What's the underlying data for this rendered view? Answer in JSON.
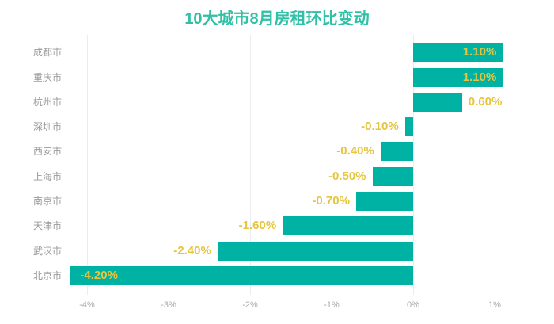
{
  "title": "10大城市8月房租环比变动",
  "chart_data": {
    "type": "bar",
    "orientation": "horizontal",
    "title": "10大城市8月房租环比变动",
    "categories": [
      "成都市",
      "重庆市",
      "杭州市",
      "深圳市",
      "西安市",
      "上海市",
      "南京市",
      "天津市",
      "武汉市",
      "北京市"
    ],
    "values": [
      1.1,
      1.1,
      0.6,
      -0.1,
      -0.4,
      -0.5,
      -0.7,
      -1.6,
      -2.4,
      -4.2
    ],
    "value_labels": [
      "1.10%",
      "1.10%",
      "0.60%",
      "-0.10%",
      "-0.40%",
      "-0.50%",
      "-0.70%",
      "-1.60%",
      "-2.40%",
      "-4.20%"
    ],
    "x_tick_labels": [
      "-4%",
      "-3%",
      "-2%",
      "-1%",
      "0%",
      "1%"
    ],
    "x_tick_values": [
      -4,
      -3,
      -2,
      -1,
      0,
      1
    ],
    "xlabel": "",
    "ylabel": "",
    "xlim": [
      -4.23,
      1.59
    ],
    "grid": true,
    "legend": "none",
    "colors": {
      "bar": "#00b2a4",
      "value_label": "#e6c53e",
      "title": "#2fc0a5",
      "category_label": "#9a9a9a",
      "tick_label": "#aaaaaa",
      "gridline": "#ececec",
      "background": "#ffffff"
    }
  }
}
